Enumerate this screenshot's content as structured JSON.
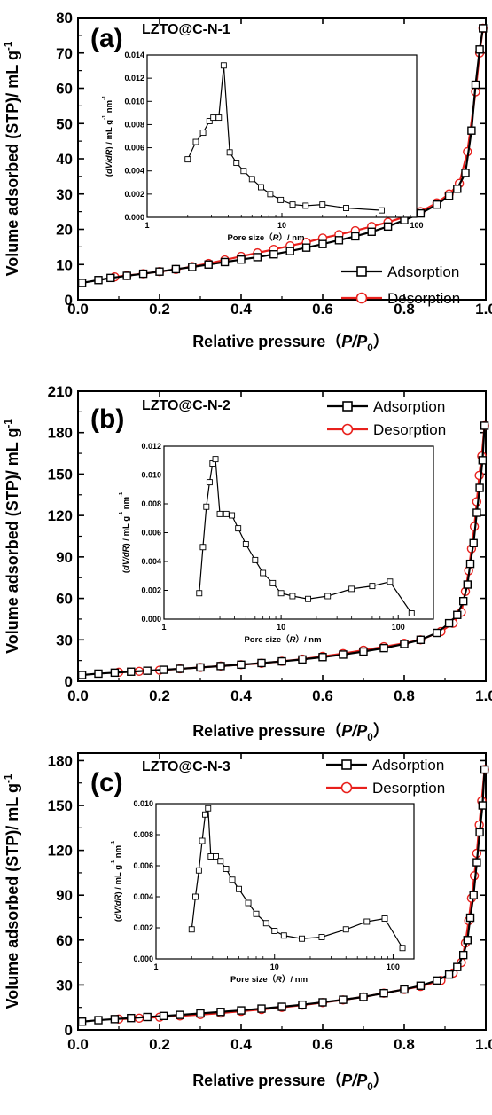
{
  "chart_data": [
    {
      "type": "line",
      "panel_letter": "(a)",
      "panel_name": "LZTO@C-N-1",
      "xlabel": "Relative pressure（P/P0）",
      "ylabel": "Volume adsorbed (STP)/ mL g-1",
      "xlim": [
        0,
        1.0
      ],
      "ylim": [
        0,
        80
      ],
      "xticks": [
        "0.0",
        "0.2",
        "0.4",
        "0.6",
        "0.8",
        "1.0"
      ],
      "yticks": [
        "0",
        "10",
        "20",
        "30",
        "40",
        "50",
        "60",
        "70",
        "80"
      ],
      "legend_position": "bottom-right",
      "series": [
        {
          "name": "Adsorption",
          "color": "#000000",
          "marker": "square",
          "x": [
            0.01,
            0.05,
            0.08,
            0.12,
            0.16,
            0.2,
            0.24,
            0.28,
            0.32,
            0.36,
            0.4,
            0.44,
            0.48,
            0.52,
            0.56,
            0.6,
            0.64,
            0.68,
            0.72,
            0.76,
            0.8,
            0.84,
            0.88,
            0.91,
            0.93,
            0.95,
            0.965,
            0.975,
            0.985,
            0.993
          ],
          "y": [
            4.8,
            5.6,
            6.2,
            6.8,
            7.4,
            8.0,
            8.7,
            9.3,
            10.0,
            10.7,
            11.4,
            12.1,
            12.9,
            13.8,
            14.8,
            15.8,
            16.9,
            18.0,
            19.3,
            20.8,
            22.6,
            24.5,
            27.0,
            29.5,
            31.5,
            36.0,
            48.0,
            61.0,
            71.0,
            77.0
          ]
        },
        {
          "name": "Desorption",
          "color": "#e8201c",
          "marker": "circle",
          "x": [
            0.993,
            0.985,
            0.975,
            0.955,
            0.935,
            0.91,
            0.88,
            0.84,
            0.8,
            0.76,
            0.72,
            0.68,
            0.64,
            0.6,
            0.56,
            0.52,
            0.48,
            0.44,
            0.4,
            0.36,
            0.32,
            0.28,
            0.24,
            0.2,
            0.16,
            0.12,
            0.09
          ],
          "y": [
            77.0,
            70.0,
            59.0,
            42.0,
            33.0,
            30.0,
            27.5,
            25.0,
            23.5,
            22.0,
            20.8,
            19.6,
            18.5,
            17.5,
            16.3,
            15.3,
            14.3,
            13.3,
            12.3,
            11.3,
            10.3,
            9.4,
            8.6,
            8.0,
            7.4,
            6.9,
            6.5
          ]
        }
      ],
      "inset": {
        "xlabel": "Pore size（R）/ nm",
        "ylabel": "(dV/dR) / mL g-1 nm-1",
        "xscale": "log",
        "xlim": [
          1,
          100
        ],
        "ylim": [
          0,
          0.014
        ],
        "xticks": [
          "1",
          "10",
          "100"
        ],
        "yticks": [
          "0.000",
          "0.002",
          "0.004",
          "0.006",
          "0.008",
          "0.010",
          "0.012",
          "0.014"
        ],
        "x": [
          2.0,
          2.3,
          2.6,
          2.9,
          3.1,
          3.4,
          3.7,
          4.1,
          4.6,
          5.2,
          6.0,
          7.0,
          8.2,
          9.8,
          12.0,
          15.0,
          20.0,
          30.0,
          55.0
        ],
        "y": [
          0.005,
          0.0065,
          0.0073,
          0.0083,
          0.0086,
          0.0086,
          0.0131,
          0.0056,
          0.0047,
          0.004,
          0.0033,
          0.0026,
          0.002,
          0.0015,
          0.0011,
          0.001,
          0.0011,
          0.0008,
          0.0006
        ]
      }
    },
    {
      "type": "line",
      "panel_letter": "(b)",
      "panel_name": "LZTO@C-N-2",
      "xlabel": "Relative pressure（P/P0）",
      "ylabel": "Volume adsorbed (STP)/ mL g-1",
      "xlim": [
        0,
        1.0
      ],
      "ylim": [
        0,
        210
      ],
      "xticks": [
        "0.0",
        "0.2",
        "0.4",
        "0.6",
        "0.8",
        "1.0"
      ],
      "yticks": [
        "0",
        "30",
        "60",
        "90",
        "120",
        "150",
        "180",
        "210"
      ],
      "legend_position": "top-right",
      "series": [
        {
          "name": "Adsorption",
          "color": "#000000",
          "marker": "square",
          "x": [
            0.01,
            0.05,
            0.09,
            0.13,
            0.17,
            0.21,
            0.25,
            0.3,
            0.35,
            0.4,
            0.45,
            0.5,
            0.55,
            0.6,
            0.65,
            0.7,
            0.75,
            0.8,
            0.84,
            0.88,
            0.91,
            0.93,
            0.945,
            0.955,
            0.962,
            0.97,
            0.978,
            0.985,
            0.992,
            0.997
          ],
          "y": [
            4.5,
            5.5,
            6.2,
            6.9,
            7.6,
            8.3,
            9.0,
            10.0,
            11.0,
            12.0,
            13.2,
            14.4,
            15.8,
            17.5,
            19.3,
            21.5,
            24.0,
            27.0,
            30.0,
            35.0,
            42.0,
            48.0,
            58.0,
            70.0,
            85.0,
            100.0,
            122.0,
            140.0,
            160.0,
            185.0
          ]
        },
        {
          "name": "Desorption",
          "color": "#e8201c",
          "marker": "circle",
          "x": [
            0.997,
            0.99,
            0.984,
            0.978,
            0.972,
            0.965,
            0.958,
            0.95,
            0.94,
            0.92,
            0.89,
            0.84,
            0.8,
            0.75,
            0.7,
            0.65,
            0.6,
            0.55,
            0.5,
            0.45,
            0.4,
            0.35,
            0.3,
            0.25,
            0.2,
            0.15,
            0.1
          ],
          "y": [
            185.0,
            163.0,
            149.0,
            130.0,
            112.0,
            96.0,
            80.0,
            65.0,
            50.0,
            42.0,
            36.0,
            30.0,
            27.5,
            25.0,
            22.5,
            20.0,
            18.0,
            16.0,
            14.5,
            13.0,
            12.0,
            11.0,
            10.0,
            9.0,
            8.0,
            7.2,
            6.5
          ]
        }
      ],
      "inset": {
        "xlabel": "Pore size（R）/ nm",
        "ylabel": "(dV/dR) / mL g-1 nm-1",
        "xscale": "log",
        "xlim": [
          1,
          200
        ],
        "ylim": [
          0,
          0.012
        ],
        "xticks": [
          "1",
          "10",
          "100"
        ],
        "yticks": [
          "0.000",
          "0.002",
          "0.004",
          "0.006",
          "0.008",
          "0.010",
          "0.012"
        ],
        "x": [
          2.0,
          2.15,
          2.3,
          2.45,
          2.6,
          2.75,
          3.0,
          3.4,
          3.8,
          4.3,
          5.0,
          6.0,
          7.0,
          8.5,
          10.0,
          12.5,
          17.0,
          25.0,
          40.0,
          60.0,
          85.0,
          130.0
        ],
        "y": [
          0.0018,
          0.005,
          0.0078,
          0.0095,
          0.0108,
          0.0111,
          0.0073,
          0.0073,
          0.0072,
          0.0063,
          0.0052,
          0.0041,
          0.0032,
          0.0025,
          0.0018,
          0.0016,
          0.0014,
          0.0016,
          0.0021,
          0.0023,
          0.0026,
          0.0004
        ]
      }
    },
    {
      "type": "line",
      "panel_letter": "(c)",
      "panel_name": "LZTO@C-N-3",
      "xlabel": "Relative pressure（P/P0）",
      "ylabel": "Volume adsorbed (STP)/ mL g-1",
      "xlim": [
        0,
        1.0
      ],
      "ylim": [
        0,
        185
      ],
      "xticks": [
        "0.0",
        "0.2",
        "0.4",
        "0.6",
        "0.8",
        "1.0"
      ],
      "yticks": [
        "0",
        "30",
        "60",
        "90",
        "120",
        "150",
        "180"
      ],
      "legend_position": "top-right",
      "series": [
        {
          "name": "Adsorption",
          "color": "#000000",
          "marker": "square",
          "x": [
            0.01,
            0.05,
            0.09,
            0.13,
            0.17,
            0.21,
            0.25,
            0.3,
            0.35,
            0.4,
            0.45,
            0.5,
            0.55,
            0.6,
            0.65,
            0.7,
            0.75,
            0.8,
            0.84,
            0.88,
            0.91,
            0.93,
            0.945,
            0.955,
            0.962,
            0.97,
            0.978,
            0.985,
            0.992,
            0.997
          ],
          "y": [
            5.5,
            6.5,
            7.2,
            7.9,
            8.6,
            9.3,
            10.0,
            11.0,
            12.0,
            13.0,
            14.2,
            15.4,
            16.8,
            18.4,
            20.1,
            22.0,
            24.5,
            27.0,
            29.5,
            33.0,
            37.0,
            42.0,
            50.0,
            60.0,
            75.0,
            90.0,
            112.0,
            132.0,
            150.0,
            174.0
          ]
        },
        {
          "name": "Desorption",
          "color": "#e8201c",
          "marker": "circle",
          "x": [
            0.997,
            0.99,
            0.984,
            0.978,
            0.972,
            0.965,
            0.958,
            0.95,
            0.94,
            0.92,
            0.89,
            0.84,
            0.8,
            0.75,
            0.7,
            0.65,
            0.6,
            0.55,
            0.5,
            0.45,
            0.4,
            0.35,
            0.3,
            0.25,
            0.2,
            0.15,
            0.1
          ],
          "y": [
            174.0,
            153.0,
            137.0,
            118.0,
            103.0,
            88.0,
            73.0,
            58.0,
            45.0,
            38.0,
            33.0,
            29.0,
            27.0,
            24.5,
            22.0,
            20.0,
            18.2,
            16.5,
            15.0,
            13.6,
            12.4,
            11.2,
            10.2,
            9.3,
            8.5,
            7.8,
            7.2
          ]
        }
      ],
      "inset": {
        "xlabel": "Pore size（R）/ nm",
        "ylabel": "(dV/dR) / mL g-1 nm-1",
        "xscale": "log",
        "xlim": [
          1,
          150
        ],
        "ylim": [
          0,
          0.01
        ],
        "xticks": [
          "1",
          "10",
          "100"
        ],
        "yticks": [
          "0.000",
          "0.002",
          "0.004",
          "0.006",
          "0.008",
          "0.010"
        ],
        "x": [
          2.0,
          2.15,
          2.3,
          2.45,
          2.6,
          2.75,
          2.9,
          3.2,
          3.5,
          3.9,
          4.4,
          5.0,
          6.0,
          7.0,
          8.5,
          10.0,
          12.0,
          17.0,
          25.0,
          40.0,
          60.0,
          85.0,
          120.0
        ],
        "y": [
          0.0019,
          0.004,
          0.0057,
          0.0076,
          0.0093,
          0.0097,
          0.0066,
          0.0066,
          0.0063,
          0.0058,
          0.0051,
          0.0045,
          0.0036,
          0.0029,
          0.0023,
          0.0018,
          0.0015,
          0.0013,
          0.0014,
          0.0019,
          0.0024,
          0.0026,
          0.0007
        ]
      }
    }
  ]
}
